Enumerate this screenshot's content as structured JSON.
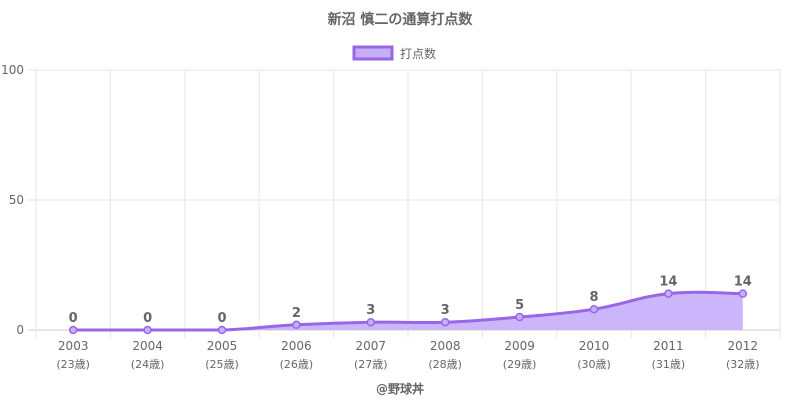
{
  "chart_data": {
    "type": "area",
    "title": "新沼 慎二の通算打点数",
    "footer": "@野球丼",
    "legend": {
      "position": "top-center",
      "label": "打点数"
    },
    "ylim": [
      0,
      100
    ],
    "yticks": [
      "0",
      "50",
      "100"
    ],
    "categories": [
      "2003",
      "2004",
      "2005",
      "2006",
      "2007",
      "2008",
      "2009",
      "2010",
      "2011",
      "2012"
    ],
    "sublabels": [
      "(23歳)",
      "(24歳)",
      "(25歳)",
      "(26歳)",
      "(27歳)",
      "(28歳)",
      "(29歳)",
      "(30歳)",
      "(31歳)",
      "(32歳)"
    ],
    "series": [
      {
        "name": "打点数",
        "values": [
          0,
          0,
          0,
          2,
          3,
          3,
          5,
          8,
          14,
          14
        ]
      }
    ],
    "data_labels": [
      "0",
      "0",
      "0",
      "2",
      "3",
      "3",
      "5",
      "8",
      "14",
      "14"
    ],
    "colors": {
      "line": "#9966e6",
      "fill": "#c6aefb",
      "grid": "#e6e6e6",
      "text": "#666666"
    },
    "grid": true
  }
}
